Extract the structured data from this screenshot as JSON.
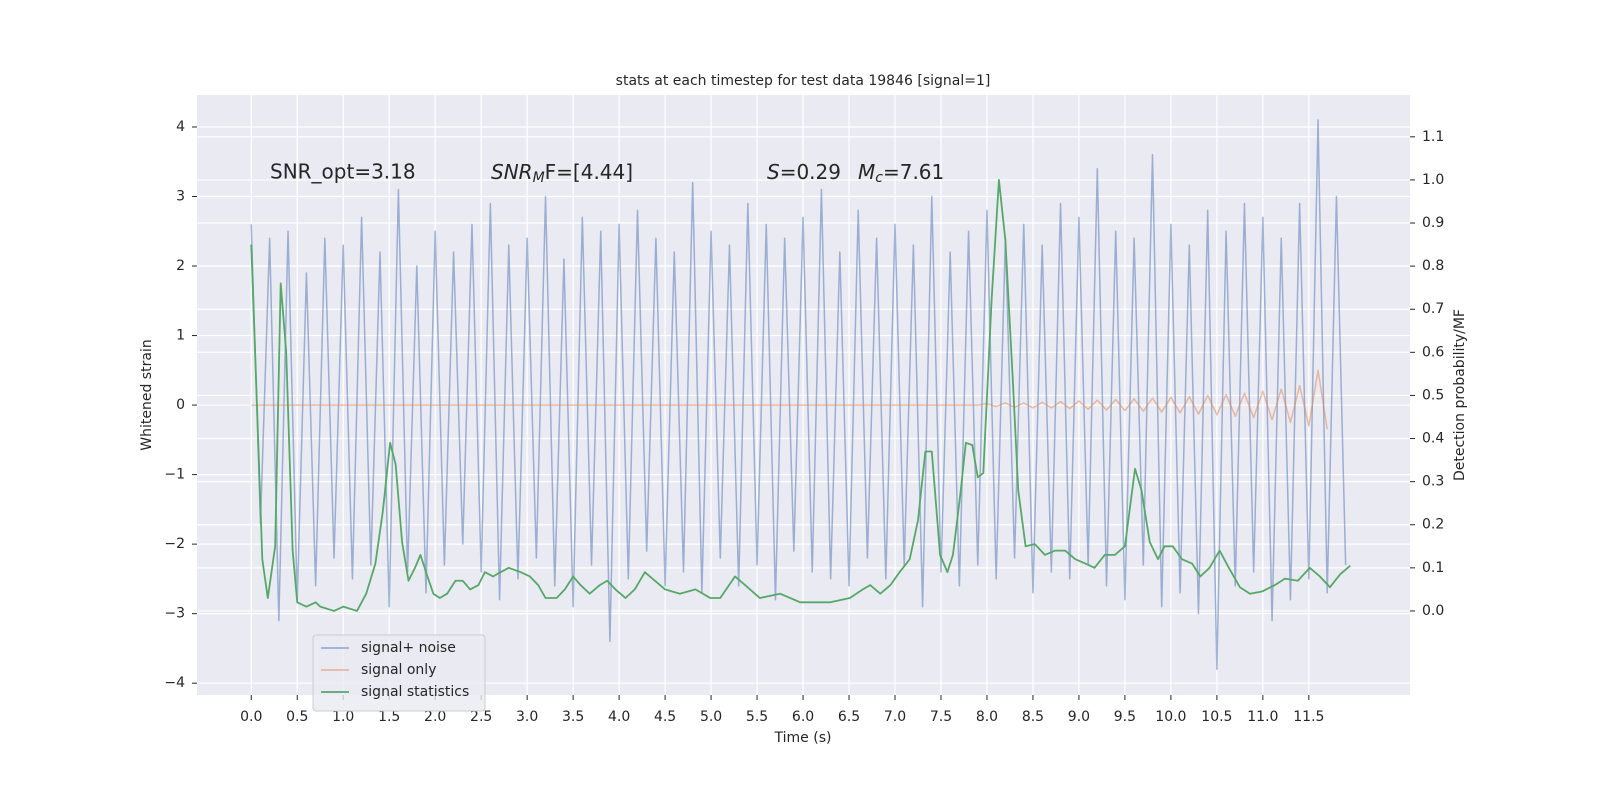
{
  "chart_data": {
    "type": "line",
    "title": "stats at each timestep for test data 19846 [signal=1]",
    "xlabel": "Time (s)",
    "ylabel": "Whitened strain",
    "y2label": "Detection probability/MF",
    "annotations": [
      {
        "text": "SNR_opt=3.18"
      },
      {
        "parts": [
          {
            "text": "SNR",
            "style": "italic"
          },
          {
            "text": "M",
            "style": "italic-sub"
          },
          {
            "text": "F=[4.44]"
          }
        ]
      },
      {
        "parts": [
          {
            "text": "S",
            "style": "italic"
          },
          {
            "text": "=0.29"
          }
        ]
      },
      {
        "parts": [
          {
            "text": "M",
            "style": "italic"
          },
          {
            "text": "c",
            "style": "italic-sub"
          },
          {
            "text": "=7.61"
          }
        ]
      }
    ],
    "grid": true,
    "legend": "lower left",
    "xlim": [
      -0.59,
      12.6
    ],
    "ylim": [
      -4.17,
      4.46
    ],
    "y2lim": [
      -0.195,
      1.197
    ],
    "xticks": [
      {
        "value": 0,
        "label": "0.0"
      },
      0.5,
      {
        "value": 1,
        "label": "1.0"
      },
      1.5,
      {
        "value": 2,
        "label": "2.0"
      },
      2.5,
      {
        "value": 3,
        "label": "3.0"
      },
      3.5,
      {
        "value": 4,
        "label": "4.0"
      },
      4.5,
      {
        "value": 5,
        "label": "5.0"
      },
      5.5,
      {
        "value": 6,
        "label": "6.0"
      },
      6.5,
      {
        "value": 7,
        "label": "7.0"
      },
      7.5,
      {
        "value": 8,
        "label": "8.0"
      },
      8.5,
      {
        "value": 9,
        "label": "9.0"
      },
      9.5,
      {
        "value": 10,
        "label": "10.0"
      },
      10.5,
      {
        "value": 11,
        "label": "11.0"
      },
      11.5
    ],
    "yticks": [
      4,
      3,
      2,
      1,
      0,
      {
        "value": -1,
        "label": "−1"
      },
      {
        "value": -2,
        "label": "−2"
      },
      {
        "value": -3,
        "label": "−3"
      },
      {
        "value": -4,
        "label": "−4"
      }
    ],
    "y2ticks": [
      {
        "value": 0,
        "label": "0.0"
      },
      0.1,
      0.2,
      0.3,
      0.4,
      0.5,
      0.6,
      0.7,
      0.8,
      0.9,
      {
        "value": 1,
        "label": "1.0"
      },
      1.1
    ],
    "x": [
      0,
      0.1,
      0.2,
      0.3,
      0.4,
      0.5,
      0.6,
      0.7,
      0.8,
      0.9,
      1,
      1.1,
      1.2,
      1.3,
      1.4,
      1.5,
      1.6,
      1.7,
      1.8,
      1.9,
      2,
      2.1,
      2.2,
      2.3,
      2.4,
      2.5,
      2.6,
      2.7,
      2.8,
      2.9,
      3,
      3.1,
      3.2,
      3.3,
      3.4,
      3.5,
      3.6,
      3.7,
      3.8,
      3.9,
      4,
      4.1,
      4.2,
      4.3,
      4.4,
      4.5,
      4.6,
      4.7,
      4.8,
      4.9,
      5,
      5.1,
      5.2,
      5.3,
      5.4,
      5.5,
      5.6,
      5.7,
      5.8,
      5.9,
      6,
      6.1,
      6.2,
      6.3,
      6.4,
      6.5,
      6.6,
      6.7,
      6.8,
      6.9,
      7,
      7.1,
      7.2,
      7.3,
      7.4,
      7.5,
      7.6,
      7.7,
      7.8,
      7.9,
      8,
      8.1,
      8.2,
      8.3,
      8.4,
      8.5,
      8.6,
      8.7,
      8.8,
      8.9,
      9,
      9.1,
      9.2,
      9.3,
      9.4,
      9.5,
      9.6,
      9.7,
      9.8,
      9.9,
      10,
      10.1,
      10.2,
      10.3,
      10.4,
      10.5,
      10.6,
      10.7,
      10.8,
      10.9,
      11,
      11.1,
      11.2,
      11.3,
      11.4,
      11.5,
      11.6,
      11.7,
      11.8,
      11.9
    ],
    "series": [
      {
        "name": "signal+ noise",
        "color": "#4c72b0",
        "values": [
          2.6,
          -1.7,
          2.4,
          -3.1,
          2.5,
          -2.8,
          1.9,
          -2.6,
          2.4,
          -2.2,
          2.3,
          -2.5,
          2.7,
          -2.3,
          2.2,
          -2.9,
          3.1,
          -2.4,
          2.0,
          -2.7,
          2.5,
          -2.3,
          2.2,
          -2.0,
          2.6,
          -2.4,
          2.9,
          -2.8,
          2.3,
          -2.5,
          2.4,
          -2.2,
          3.0,
          -2.6,
          2.1,
          -2.9,
          2.7,
          -2.3,
          2.5,
          -3.4,
          2.6,
          -2.5,
          2.8,
          -2.1,
          2.4,
          -2.6,
          2.2,
          -2.4,
          3.2,
          -2.7,
          2.5,
          -2.2,
          2.3,
          -2.6,
          2.9,
          -2.3,
          2.6,
          -2.8,
          2.4,
          -2.1,
          2.7,
          -2.4,
          3.1,
          -2.5,
          2.2,
          -2.6,
          2.8,
          -2.2,
          2.4,
          -2.5,
          2.6,
          -2.3,
          2.3,
          -2.9,
          3.0,
          -2.4,
          2.2,
          -2.6,
          2.5,
          -2.3,
          2.8,
          -2.5,
          2.4,
          -2.2,
          2.6,
          -2.7,
          2.3,
          -2.4,
          2.9,
          -2.5,
          2.7,
          -2.3,
          3.4,
          -2.6,
          2.5,
          -2.8,
          2.4,
          -2.3,
          3.6,
          -2.9,
          2.6,
          -2.7,
          2.3,
          -3.0,
          2.8,
          -3.8,
          2.5,
          -2.6,
          2.9,
          -2.4,
          2.7,
          -3.1,
          2.4,
          -2.8,
          2.9,
          -2.5,
          4.1,
          -2.7,
          3.0,
          -2.3
        ]
      },
      {
        "name": "signal only",
        "color": "#dd8452",
        "values": [
          0,
          0,
          0,
          0,
          0,
          0,
          0,
          0,
          0,
          0,
          0,
          0,
          0,
          0,
          0,
          0,
          0,
          0,
          0,
          0,
          0,
          0,
          0,
          0,
          0,
          0,
          0,
          0,
          0,
          0,
          0,
          0,
          0,
          0,
          0,
          0,
          0,
          0,
          0,
          0,
          0,
          0,
          0,
          0,
          0,
          0,
          0,
          0,
          0,
          0,
          0,
          0,
          0,
          0,
          0,
          0,
          0,
          0,
          0,
          0,
          0,
          0,
          0,
          0,
          0,
          0,
          0,
          0,
          0,
          0,
          0,
          0,
          0,
          0,
          0,
          0,
          0,
          0,
          0,
          0,
          0.02,
          -0.02,
          0.03,
          -0.03,
          0.03,
          -0.04,
          0.04,
          -0.04,
          0.05,
          -0.05,
          0.06,
          -0.06,
          0.07,
          -0.07,
          0.08,
          -0.08,
          0.09,
          -0.09,
          0.1,
          -0.1,
          0.11,
          -0.11,
          0.12,
          -0.13,
          0.14,
          -0.14,
          0.15,
          -0.16,
          0.17,
          -0.18,
          0.2,
          -0.21,
          0.23,
          -0.25,
          0.28,
          -0.3,
          0.5,
          -0.35,
          null,
          null
        ]
      },
      {
        "name": "signal statistics",
        "color": "#55a868",
        "axis": "y2",
        "x": [
          0,
          0.05,
          0.12,
          0.18,
          0.26,
          0.32,
          0.38,
          0.45,
          0.5,
          0.6,
          0.7,
          0.75,
          0.9,
          1,
          1.15,
          1.25,
          1.35,
          1.43,
          1.51,
          1.57,
          1.64,
          1.71,
          1.78,
          1.84,
          1.9,
          1.98,
          2.05,
          2.13,
          2.22,
          2.3,
          2.38,
          2.47,
          2.54,
          2.63,
          2.71,
          2.8,
          2.93,
          3.03,
          3.12,
          3.2,
          3.32,
          3.41,
          3.5,
          3.58,
          3.68,
          3.79,
          3.87,
          3.96,
          4.07,
          4.17,
          4.28,
          4.39,
          4.5,
          4.66,
          4.83,
          4.99,
          5.1,
          5.26,
          5.37,
          5.53,
          5.75,
          5.97,
          6.29,
          6.51,
          6.65,
          6.73,
          6.84,
          6.95,
          7.05,
          7.16,
          7.25,
          7.33,
          7.4,
          7.49,
          7.57,
          7.63,
          7.71,
          7.77,
          7.84,
          7.9,
          7.96,
          8.05,
          8.13,
          8.2,
          8.28,
          8.34,
          8.42,
          8.52,
          8.63,
          8.74,
          8.85,
          8.96,
          9.07,
          9.17,
          9.28,
          9.39,
          9.5,
          9.61,
          9.68,
          9.77,
          9.86,
          9.93,
          10.02,
          10.12,
          10.23,
          10.32,
          10.42,
          10.53,
          10.63,
          10.75,
          10.86,
          10.99,
          11.13,
          11.24,
          11.38,
          11.51,
          11.62,
          11.73,
          11.84,
          11.95
        ],
        "values": [
          0.85,
          0.55,
          0.12,
          0.03,
          0.15,
          0.76,
          0.6,
          0.14,
          0.02,
          0.01,
          0.02,
          0.01,
          0,
          0.01,
          0,
          0.04,
          0.11,
          0.23,
          0.39,
          0.34,
          0.16,
          0.07,
          0.1,
          0.13,
          0.09,
          0.04,
          0.03,
          0.04,
          0.07,
          0.07,
          0.05,
          0.06,
          0.09,
          0.08,
          0.09,
          0.1,
          0.09,
          0.08,
          0.06,
          0.03,
          0.03,
          0.05,
          0.08,
          0.06,
          0.04,
          0.06,
          0.07,
          0.05,
          0.03,
          0.05,
          0.09,
          0.07,
          0.05,
          0.04,
          0.05,
          0.03,
          0.03,
          0.08,
          0.06,
          0.03,
          0.04,
          0.02,
          0.02,
          0.03,
          0.05,
          0.06,
          0.04,
          0.06,
          0.09,
          0.12,
          0.21,
          0.37,
          0.37,
          0.13,
          0.09,
          0.13,
          0.27,
          0.39,
          0.385,
          0.31,
          0.32,
          0.72,
          1.0,
          0.86,
          0.54,
          0.28,
          0.15,
          0.155,
          0.13,
          0.14,
          0.14,
          0.12,
          0.11,
          0.1,
          0.13,
          0.13,
          0.15,
          0.33,
          0.28,
          0.16,
          0.12,
          0.15,
          0.15,
          0.12,
          0.11,
          0.08,
          0.1,
          0.14,
          0.1,
          0.055,
          0.04,
          0.045,
          0.06,
          0.075,
          0.07,
          0.1,
          0.08,
          0.055,
          0.085,
          0.105
        ]
      }
    ]
  }
}
